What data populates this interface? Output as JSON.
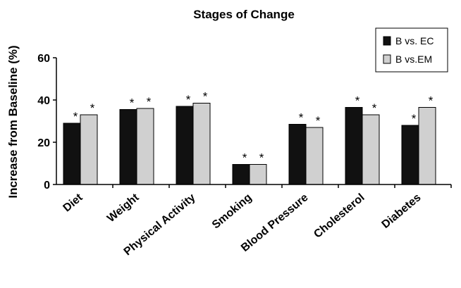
{
  "chart_data": {
    "type": "bar",
    "title": "Stages of Change",
    "ylabel": "Increase from Baseline (%)",
    "xlabel": "",
    "ylim": [
      0,
      60
    ],
    "yticks": [
      0,
      20,
      40,
      60
    ],
    "categories": [
      "Diet",
      "Weight",
      "Physical Activity",
      "Smoking",
      "Blood Pressure",
      "Cholesterol",
      "Diabetes"
    ],
    "series": [
      {
        "name": "B vs. EC",
        "color": "#111111",
        "values": [
          29,
          35.5,
          37,
          9.5,
          28.5,
          36.5,
          28
        ]
      },
      {
        "name": "B vs.EM",
        "color": "#d0d0d0",
        "values": [
          33,
          36,
          38.5,
          9.5,
          27,
          33,
          36.5
        ]
      }
    ],
    "significance_marker": "*",
    "grid": false,
    "legend_position": "top-right"
  }
}
